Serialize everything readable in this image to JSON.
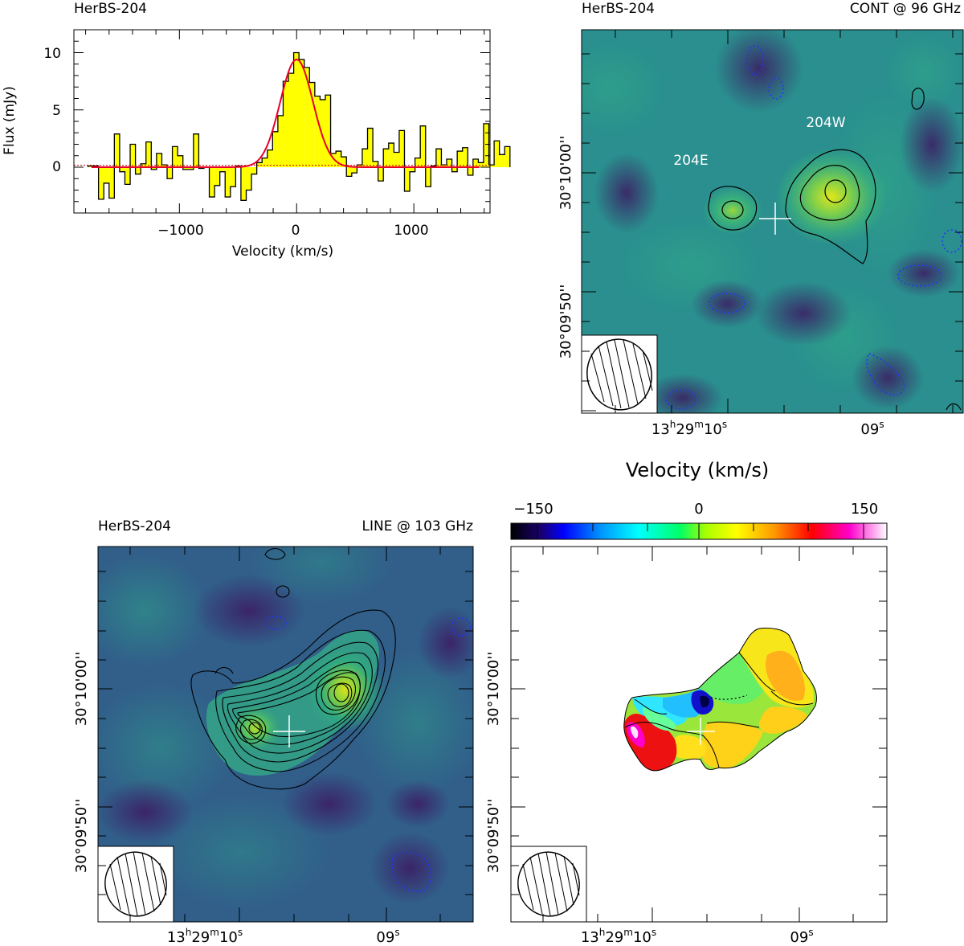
{
  "chart_data": [
    {
      "type": "bar",
      "panel": "spectrum",
      "title": "HerBS-204",
      "xlabel": "Velocity (km/s)",
      "ylabel": "Flux (mJy)",
      "xlim": [
        -1900,
        1650
      ],
      "ylim": [
        -4,
        12
      ],
      "x_ticks": [
        -1000,
        0,
        1000
      ],
      "x_tick_labels": [
        "−1000",
        "0",
        "1000"
      ],
      "y_ticks": [
        0,
        5,
        10
      ],
      "y_tick_labels": [
        "0",
        "5",
        "10"
      ],
      "bin_start": -1780,
      "bin_width": 45,
      "values": [
        0.1,
        0.1,
        -2.8,
        -1.4,
        -2.7,
        2.9,
        -0.4,
        -1.5,
        2.0,
        -0.6,
        0.3,
        2.2,
        -0.2,
        1.2,
        0.2,
        -1.0,
        1.8,
        1.0,
        -0.2,
        -0.2,
        2.9,
        -0.1,
        0.0,
        -2.6,
        -1.6,
        -0.4,
        -2.6,
        -1.7,
        0.1,
        -2.9,
        -2.0,
        -0.6,
        0.4,
        0.8,
        1.5,
        3.1,
        4.5,
        7.5,
        8.2,
        10.0,
        9.4,
        8.7,
        7.4,
        6.2,
        5.9,
        6.3,
        1.2,
        1.4,
        0.9,
        -0.8,
        -0.5,
        0.2,
        1.6,
        3.4,
        0.5,
        -1.2,
        1.6,
        2.1,
        1.3,
        3.2,
        -2.1,
        -0.4,
        0.8,
        3.6,
        -1.7,
        0.1,
        1.6,
        0.2,
        0.7,
        -0.4,
        1.4,
        1.7,
        -0.7,
        0.7,
        0.4,
        3.8,
        0.2,
        2.3,
        1.1,
        1.8
      ],
      "fit_series": {
        "name": "",
        "center": 0,
        "amplitude": 9.4,
        "sigma": 140
      },
      "colors": {
        "bars": "#ffff00",
        "fit": "#e8002a",
        "zero_line": "#cc0000"
      }
    },
    {
      "type": "heatmap",
      "panel": "continuum",
      "title": "HerBS-204",
      "subtitle": "CONT @ 96 GHz",
      "x_tick_labels": [
        "13h29m10s",
        "09s"
      ],
      "y_tick_labels": [
        "30°10'00''",
        "30°09'50''"
      ],
      "annotations": [
        "204E",
        "204W"
      ],
      "colormap": "viridis"
    },
    {
      "type": "heatmap",
      "panel": "line",
      "title": "HerBS-204",
      "subtitle": "LINE @ 103 GHz",
      "x_tick_labels": [
        "13h29m10s",
        "09s"
      ],
      "y_tick_labels": [
        "30°10'00''",
        "30°09'50''"
      ],
      "colormap": "viridis"
    },
    {
      "type": "heatmap",
      "panel": "velocity",
      "colorbar_label": "Velocity (km/s)",
      "colorbar_range": [
        -150,
        150
      ],
      "colorbar_ticks": [
        -150,
        0,
        150
      ],
      "colorbar_tick_labels": [
        "−150",
        "0",
        "150"
      ],
      "x_tick_labels": [
        "13h29m10s",
        "09s"
      ],
      "y_tick_labels": [
        "30°10'00''",
        "30°09'50''"
      ],
      "colormap": "rainbow"
    }
  ],
  "labels": {
    "spec_title": "HerBS-204",
    "spec_xlabel": "Velocity (km/s)",
    "spec_ylabel": "Flux (mJy)",
    "spec_y0": "0",
    "spec_y5": "5",
    "spec_y10": "10",
    "spec_xm1000": "−1000",
    "spec_x0": "0",
    "spec_x1000": "1000",
    "cont_title": "HerBS-204",
    "cont_freq": "CONT @ 96 GHz",
    "src_e": "204E",
    "src_w": "204W",
    "line_title": "HerBS-204",
    "line_freq": "LINE @ 103 GHz",
    "ra_h": "13",
    "ra_hu": "h",
    "ra_m": "29",
    "ra_mu": "m",
    "ra_s": "10",
    "ra_su": "s",
    "ra_09": "09",
    "dec_1000": "30°10'00''",
    "dec_0950": "30°09'50''",
    "vel_label": "Velocity (km/s)",
    "cb_m150": "−150",
    "cb_0": "0",
    "cb_150": "150"
  }
}
